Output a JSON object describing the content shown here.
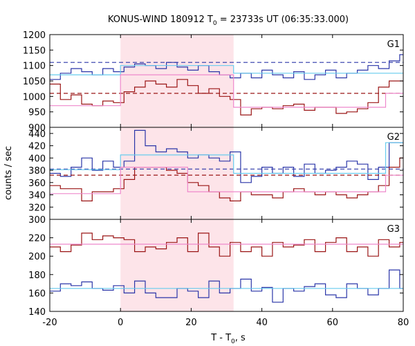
{
  "figure": {
    "title_main": "KONUS-WIND 180912 T",
    "title_sub": "0",
    "title_rest": " = 23733s UT (06:35:33.000)",
    "xlabel_main": "T - T",
    "xlabel_sub": "0",
    "xlabel_rest": ", s",
    "ylabel": "counts / sec"
  },
  "colors": {
    "background": "#ffffff",
    "shade": "#fde4e9",
    "blue": "#2a35a8",
    "red": "#9a1414",
    "cyan": "#66ccee",
    "pink": "#ee88cc"
  },
  "chart_data": [
    {
      "type": "line",
      "panel_label": "G1",
      "xlim": [
        -20,
        80
      ],
      "ylim": [
        900,
        1200
      ],
      "x_ticks": [],
      "y_ticks": [
        "900",
        "950",
        "1000",
        "1050",
        "1100",
        "1150",
        "1200"
      ],
      "shaded_interval": [
        0,
        32
      ],
      "bin_edges": [
        -20,
        -17,
        -14,
        -11,
        -8,
        -5,
        -2,
        1,
        4,
        7,
        10,
        13,
        16,
        19,
        22,
        25,
        28,
        31,
        34,
        37,
        40,
        43,
        46,
        49,
        52,
        55,
        58,
        61,
        64,
        67,
        70,
        73,
        76,
        79,
        80
      ],
      "series": [
        {
          "style": "step",
          "color": "blue",
          "values": [
            1055,
            1075,
            1090,
            1080,
            1070,
            1090,
            1080,
            1095,
            1105,
            1100,
            1090,
            1110,
            1095,
            1085,
            1100,
            1080,
            1070,
            1060,
            1075,
            1060,
            1085,
            1070,
            1060,
            1080,
            1055,
            1070,
            1085,
            1060,
            1075,
            1085,
            1100,
            1090,
            1115,
            1135
          ]
        },
        {
          "style": "step",
          "color": "red",
          "values": [
            1040,
            990,
            1005,
            975,
            970,
            985,
            980,
            1015,
            1030,
            1050,
            1040,
            1030,
            1055,
            1035,
            1010,
            1025,
            1000,
            990,
            940,
            960,
            965,
            960,
            970,
            975,
            955,
            965,
            965,
            945,
            950,
            960,
            980,
            1030,
            1050,
            1050
          ]
        },
        {
          "style": "hline",
          "color": "blue",
          "dash": true,
          "y": 1110
        },
        {
          "style": "hline",
          "color": "red",
          "dash": true,
          "y": 1010
        },
        {
          "style": "segments",
          "color": "cyan",
          "points": [
            [
              -20,
              1070
            ],
            [
              0,
              1070
            ],
            [
              0,
              1100
            ],
            [
              32,
              1100
            ],
            [
              32,
              1075
            ],
            [
              80,
              1075
            ]
          ]
        },
        {
          "style": "segments",
          "color": "pink",
          "points": [
            [
              -20,
              970
            ],
            [
              0,
              970
            ],
            [
              0,
              1070
            ],
            [
              32,
              1070
            ],
            [
              32,
              965
            ],
            [
              75,
              965
            ],
            [
              75,
              1010
            ],
            [
              80,
              1010
            ]
          ]
        }
      ]
    },
    {
      "type": "line",
      "panel_label": "G2",
      "xlim": [
        -20,
        80
      ],
      "ylim": [
        300,
        450
      ],
      "x_ticks": [],
      "y_ticks": [
        "300",
        "320",
        "340",
        "360",
        "380",
        "400",
        "420",
        "440"
      ],
      "shaded_interval": [
        0,
        32
      ],
      "bin_edges": [
        -20,
        -17,
        -14,
        -11,
        -8,
        -5,
        -2,
        1,
        4,
        7,
        10,
        13,
        16,
        19,
        22,
        25,
        28,
        31,
        34,
        37,
        40,
        43,
        46,
        49,
        52,
        55,
        58,
        61,
        64,
        67,
        70,
        73,
        76,
        79,
        80
      ],
      "series": [
        {
          "style": "step",
          "color": "blue",
          "values": [
            375,
            370,
            385,
            400,
            380,
            395,
            385,
            395,
            445,
            420,
            410,
            415,
            410,
            400,
            405,
            400,
            395,
            410,
            360,
            370,
            385,
            375,
            385,
            370,
            390,
            375,
            380,
            385,
            395,
            390,
            365,
            385,
            425,
            425
          ]
        },
        {
          "style": "step",
          "color": "red",
          "values": [
            355,
            350,
            350,
            330,
            345,
            345,
            350,
            365,
            385,
            385,
            385,
            380,
            375,
            360,
            355,
            345,
            335,
            330,
            345,
            340,
            340,
            335,
            345,
            350,
            345,
            340,
            345,
            340,
            335,
            340,
            345,
            355,
            385,
            400
          ]
        },
        {
          "style": "hline",
          "color": "blue",
          "dash": true,
          "y": 382
        },
        {
          "style": "hline",
          "color": "red",
          "dash": true,
          "y": 372
        },
        {
          "style": "segments",
          "color": "cyan",
          "points": [
            [
              -20,
              381
            ],
            [
              0,
              381
            ],
            [
              0,
              405
            ],
            [
              32,
              405
            ],
            [
              32,
              375
            ],
            [
              75,
              375
            ],
            [
              75,
              425
            ],
            [
              80,
              425
            ]
          ]
        },
        {
          "style": "segments",
          "color": "pink",
          "points": [
            [
              -20,
              342
            ],
            [
              0,
              342
            ],
            [
              0,
              385
            ],
            [
              19,
              385
            ],
            [
              19,
              345
            ],
            [
              32,
              345
            ],
            [
              32,
              345
            ],
            [
              75,
              345
            ],
            [
              75,
              372
            ],
            [
              80,
              372
            ]
          ]
        }
      ]
    },
    {
      "type": "line",
      "panel_label": "G3",
      "xlim": [
        -20,
        80
      ],
      "ylim": [
        140,
        240
      ],
      "x_ticks": [
        "-20",
        "0",
        "20",
        "40",
        "60",
        "80"
      ],
      "y_ticks": [
        "140",
        "160",
        "180",
        "200",
        "220"
      ],
      "shaded_interval": [
        0,
        32
      ],
      "bin_edges": [
        -20,
        -17,
        -14,
        -11,
        -8,
        -5,
        -2,
        1,
        4,
        7,
        10,
        13,
        16,
        19,
        22,
        25,
        28,
        31,
        34,
        37,
        40,
        43,
        46,
        49,
        52,
        55,
        58,
        61,
        64,
        67,
        70,
        73,
        76,
        79,
        80
      ],
      "series": [
        {
          "style": "step",
          "color": "blue",
          "values": [
            162,
            170,
            168,
            172,
            165,
            163,
            168,
            160,
            173,
            160,
            155,
            155,
            165,
            162,
            155,
            173,
            160,
            165,
            175,
            162,
            166,
            150,
            165,
            162,
            167,
            170,
            158,
            155,
            170,
            165,
            158,
            165,
            185,
            165
          ]
        },
        {
          "style": "step",
          "color": "red",
          "values": [
            210,
            205,
            212,
            225,
            218,
            222,
            220,
            218,
            205,
            210,
            208,
            215,
            220,
            205,
            225,
            210,
            200,
            215,
            205,
            210,
            200,
            215,
            210,
            212,
            218,
            205,
            215,
            220,
            205,
            210,
            200,
            218,
            210,
            215
          ]
        },
        {
          "style": "segments",
          "color": "cyan",
          "points": [
            [
              -20,
              165
            ],
            [
              80,
              165
            ]
          ]
        },
        {
          "style": "segments",
          "color": "pink",
          "points": [
            [
              -20,
              213
            ],
            [
              80,
              213
            ]
          ]
        }
      ]
    }
  ]
}
